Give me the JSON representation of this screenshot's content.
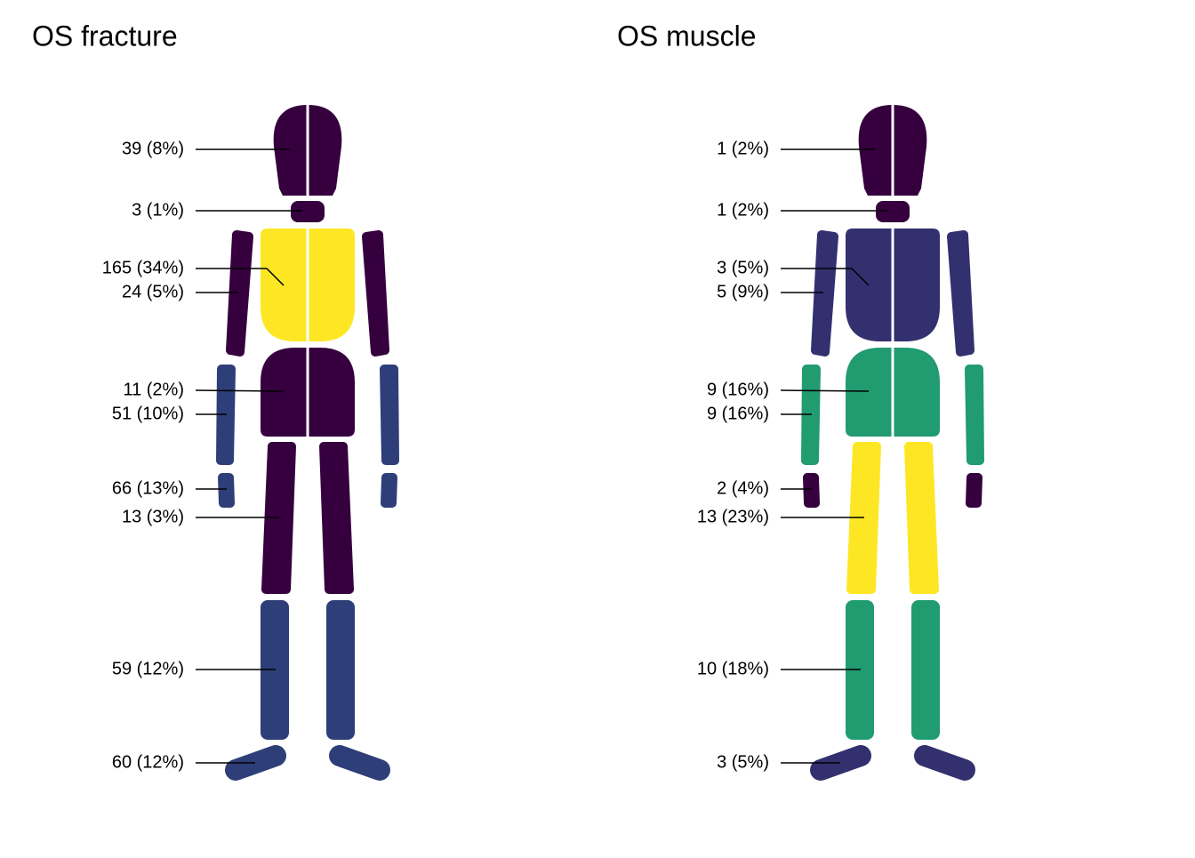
{
  "chart_data": [
    {
      "type": "bodymap",
      "title": "OS fracture",
      "values": [
        39,
        3,
        165,
        24,
        11,
        51,
        66,
        13,
        59,
        60
      ],
      "value_labels": [
        "39 (8%)",
        "3 (1%)",
        "165 (34%)",
        "24 (5%)",
        "11 (2%)",
        "51 (10%)",
        "66 (13%)",
        "13 (3%)",
        "59 (12%)",
        "60 (12%)"
      ],
      "colors": [
        "#36003f",
        "#36003f",
        "#fde725",
        "#36003f",
        "#36003f",
        "#2e3e78",
        "#2e3e78",
        "#36003f",
        "#2e3e78",
        "#2e3e78"
      ]
    },
    {
      "type": "bodymap",
      "title": "OS muscle",
      "values": [
        1,
        1,
        3,
        5,
        9,
        9,
        2,
        13,
        10,
        3
      ],
      "value_labels": [
        "1 (2%)",
        "1 (2%)",
        "3 (5%)",
        "5 (9%)",
        "9 (16%)",
        "9 (16%)",
        "2 (4%)",
        "13 (23%)",
        "10 (18%)",
        "3 (5%)"
      ],
      "colors": [
        "#36003f",
        "#36003f",
        "#33306f",
        "#33306f",
        "#219b70",
        "#219b70",
        "#36003f",
        "#fde725",
        "#219b70",
        "#33306f"
      ]
    }
  ]
}
